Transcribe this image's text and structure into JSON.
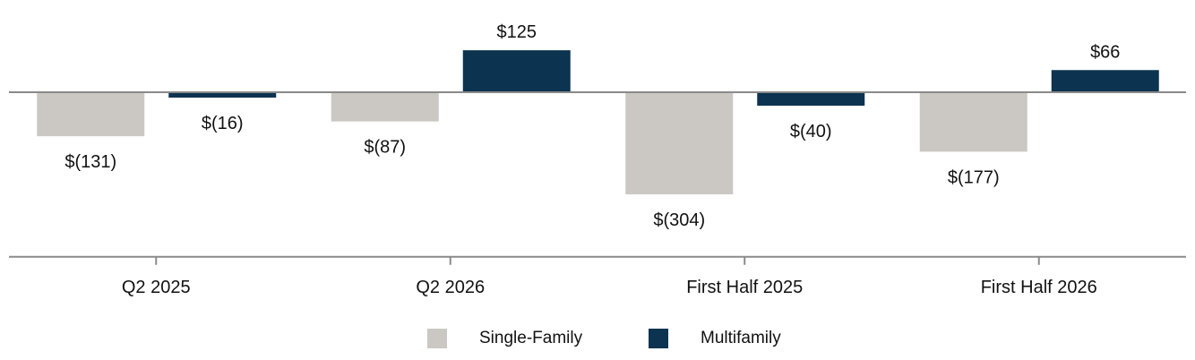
{
  "chart_data": {
    "type": "bar",
    "categories": [
      "Q2 2025",
      "Q2 2026",
      "First Half 2025",
      "First Half 2026"
    ],
    "series": [
      {
        "name": "Single-Family",
        "values": [
          -131,
          -87,
          -304,
          -177
        ],
        "labels": [
          "$(131)",
          "$(87)",
          "$(304)",
          "$(177)"
        ],
        "color": "#cbc8c3"
      },
      {
        "name": "Multifamily",
        "values": [
          -16,
          125,
          -40,
          66
        ],
        "labels": [
          "$(16)",
          "$125",
          "$(40)",
          "$66"
        ],
        "color": "#0c3350"
      }
    ],
    "ylim": [
      -490,
      125
    ],
    "grid": false,
    "legend_position": "bottom-center"
  }
}
